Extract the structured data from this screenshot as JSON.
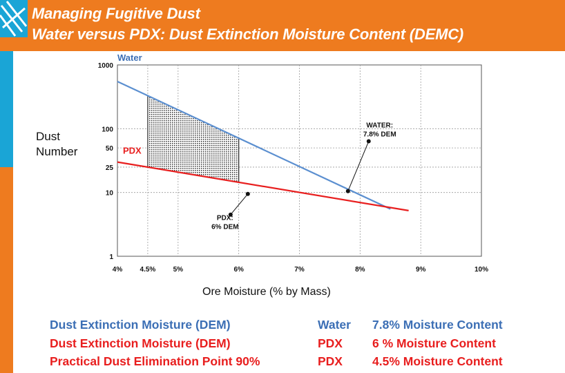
{
  "header": {
    "line1": "Managing Fugitive Dust",
    "line2": "Water versus PDX: Dust Extinction Moisture Content (DEMC)"
  },
  "colors": {
    "header_bg": "#ee7b1f",
    "side_blue": "#1aa5d6",
    "water": "#5b8fd0",
    "pdx": "#e81e1e",
    "water_text": "#3c6fb5"
  },
  "chart_data": {
    "type": "line",
    "xlabel": "Ore Moisture (% by Mass)",
    "ylabel": "Dust Number",
    "x_ticks": [
      "4%",
      "4.5%",
      "5%",
      "6%",
      "7%",
      "8%",
      "9%",
      "10%"
    ],
    "x_tick_values": [
      4,
      4.5,
      5,
      6,
      7,
      8,
      9,
      10
    ],
    "y_ticks": [
      "1",
      "10",
      "25",
      "50",
      "100",
      "1000"
    ],
    "y_tick_values": [
      1,
      10,
      25,
      50,
      100,
      1000
    ],
    "xlim": [
      4,
      10
    ],
    "ylim": [
      1,
      1000
    ],
    "y_scale": "log",
    "grid": true,
    "series": [
      {
        "name": "Water",
        "x": [
          4.0,
          8.5
        ],
        "y": [
          550,
          5.5
        ]
      },
      {
        "name": "PDX",
        "x": [
          4.0,
          8.8
        ],
        "y": [
          30,
          5.2
        ]
      }
    ],
    "shaded_region": {
      "x_from": 4.5,
      "x_to": 6.0
    },
    "annotations": [
      {
        "label_lines": [
          "WATER:",
          "7.8% DEM"
        ],
        "x": 7.8,
        "y": 10.5
      },
      {
        "label_lines": [
          "PDX:",
          "6% DEM"
        ],
        "x": 6.15,
        "y": 9.5
      }
    ]
  },
  "summary": [
    {
      "label": "Dust Extinction Moisture (DEM)",
      "agent": "Water",
      "value": "7.8% Moisture Content"
    },
    {
      "label": "Dust Extinction Moisture (DEM)",
      "agent": "PDX",
      "value": "6 % Moisture Content"
    },
    {
      "label": "Practical Dust Elimination Point 90%",
      "agent": "PDX",
      "value": "4.5% Moisture Content"
    }
  ]
}
